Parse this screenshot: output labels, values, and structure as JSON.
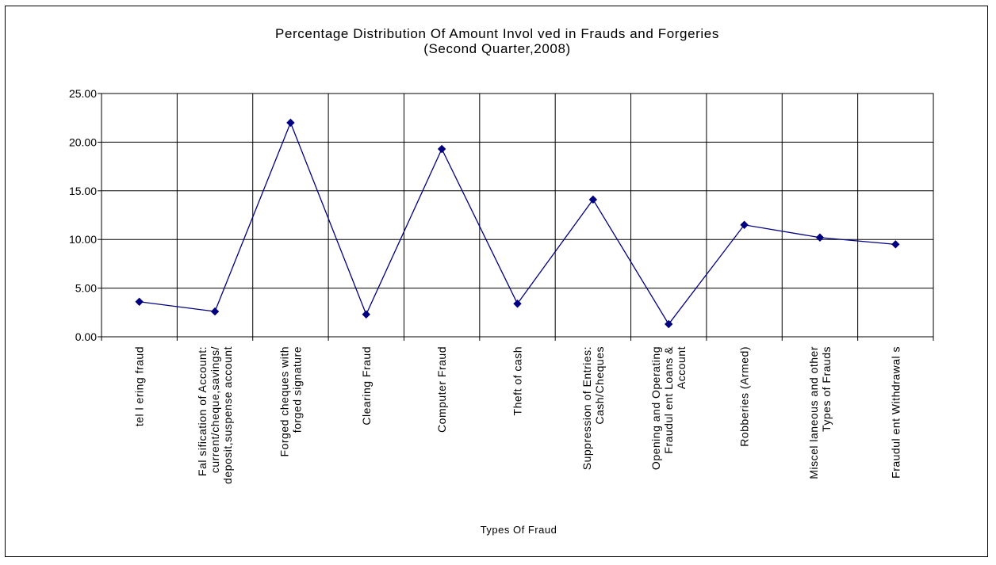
{
  "chart_data": {
    "type": "line",
    "title": "Percentage Distribution Of Amount Invol ved in Frauds and Forgeries",
    "subtitle": "(Second Quarter,2008)",
    "xlabel": "Types Of Fraud",
    "ylabel": "",
    "ylim": [
      0,
      25
    ],
    "yticks": [
      "0.00",
      "5.00",
      "10.00",
      "15.00",
      "20.00",
      "25.00"
    ],
    "grid": true,
    "legend": "none",
    "categories": [
      [
        "tel l ering fraud"
      ],
      [
        "Fal sification of Account:",
        "current/cheque,savings/",
        "deposit,suspense account"
      ],
      [
        "Forged cheques with",
        "forged signature"
      ],
      [
        "Clearing Fraud"
      ],
      [
        "Computer Fraud"
      ],
      [
        "Theft of cash"
      ],
      [
        "Suppression of Entries:",
        "Cash/Cheques"
      ],
      [
        "Opening and Operating",
        "Fraudul ent Loans &",
        "Account"
      ],
      [
        "Robberies (Armed)"
      ],
      [
        "Miscel laneous and other",
        "Types of Frauds"
      ],
      [
        "Fraudul ent Withdrawal s"
      ]
    ],
    "series": [
      {
        "values": [
          3.6,
          2.6,
          22.0,
          2.3,
          19.3,
          3.4,
          14.1,
          1.3,
          11.5,
          10.2,
          9.5
        ],
        "color": "#000080",
        "marker": "diamond"
      }
    ]
  }
}
